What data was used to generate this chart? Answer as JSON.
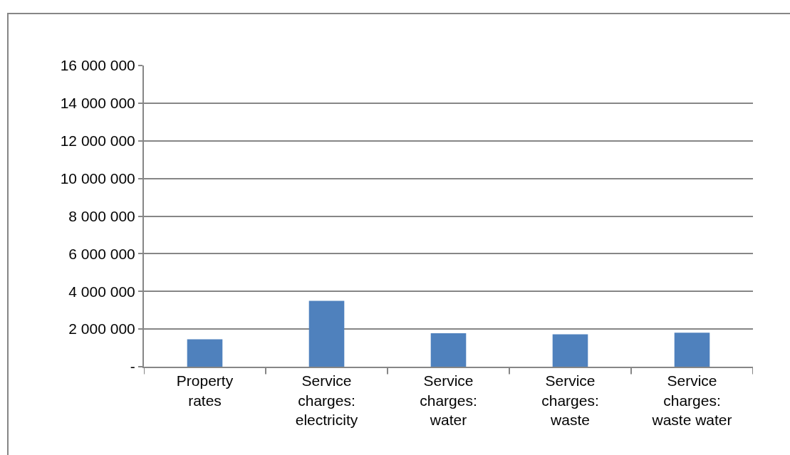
{
  "chart_data": {
    "type": "bar",
    "categories": [
      "Property rates",
      "Service charges: electricity",
      "Service charges: water",
      "Service charges: waste",
      "Service charges: waste water"
    ],
    "values": [
      1460000,
      3500000,
      1780000,
      1720000,
      1810000
    ],
    "color": "#4f81bd",
    "ylim": [
      0,
      16000000
    ],
    "yticks": [
      {
        "value": 0,
        "label": "-"
      },
      {
        "value": 2000000,
        "label": "2 000 000"
      },
      {
        "value": 4000000,
        "label": "4 000 000"
      },
      {
        "value": 6000000,
        "label": "6 000 000"
      },
      {
        "value": 8000000,
        "label": "8 000 000"
      },
      {
        "value": 10000000,
        "label": "10 000 000"
      },
      {
        "value": 12000000,
        "label": "12 000 000"
      },
      {
        "value": 14000000,
        "label": "14 000 000"
      },
      {
        "value": 16000000,
        "label": "16 000 000"
      }
    ],
    "grid": "y"
  }
}
